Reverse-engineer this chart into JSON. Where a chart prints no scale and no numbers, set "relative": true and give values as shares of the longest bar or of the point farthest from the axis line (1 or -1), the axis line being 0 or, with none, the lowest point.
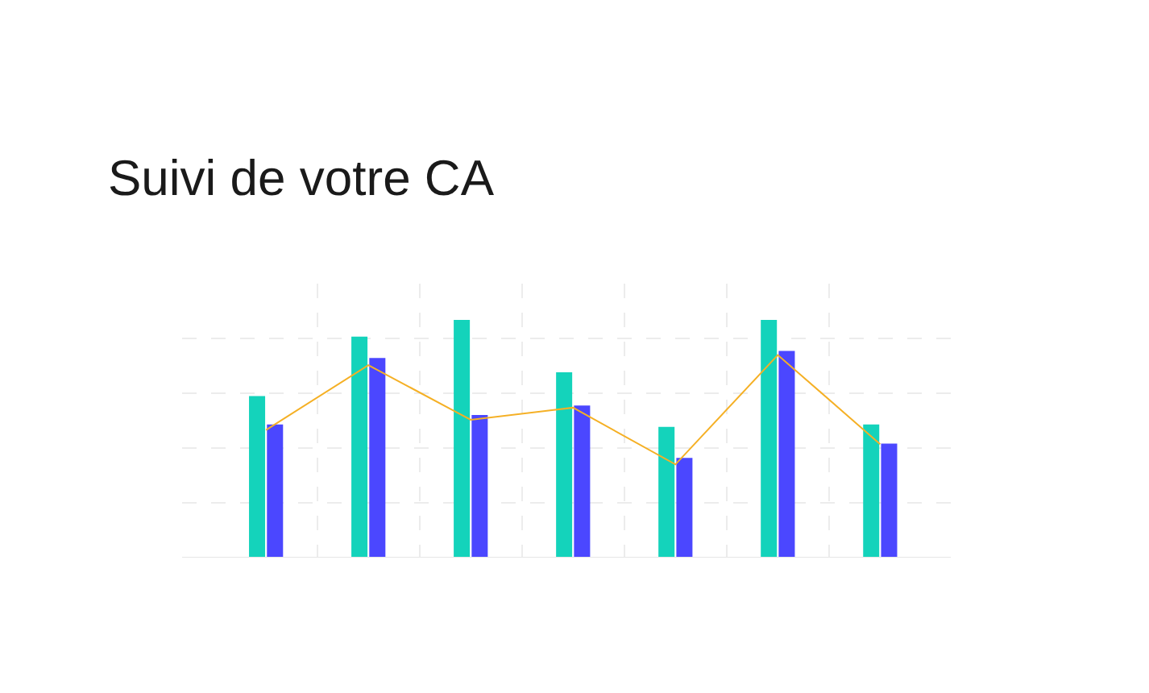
{
  "chart_data": [
    {
      "type": "bar",
      "title": "Suivi de votre CA",
      "relative": true,
      "categories": [
        null,
        null,
        null,
        null,
        null,
        null,
        null
      ],
      "grid": true,
      "series": [
        {
          "color": "#14d3bb",
          "values": [
            0.68,
            0.93,
            1,
            0.78,
            0.55,
            1,
            0.56
          ]
        },
        {
          "color": "#4b47ff",
          "values": [
            0.56,
            0.84,
            0.6,
            0.64,
            0.42,
            0.87,
            0.48
          ]
        }
      ]
    },
    {
      "type": "line",
      "relative": true,
      "categories": [
        null,
        null,
        null,
        null,
        null,
        null,
        null
      ],
      "series": [
        {
          "color": "#f5b025",
          "values": [
            0.63,
            0.95,
            0.68,
            0.74,
            0.46,
            1,
            0.56
          ]
        }
      ]
    }
  ]
}
